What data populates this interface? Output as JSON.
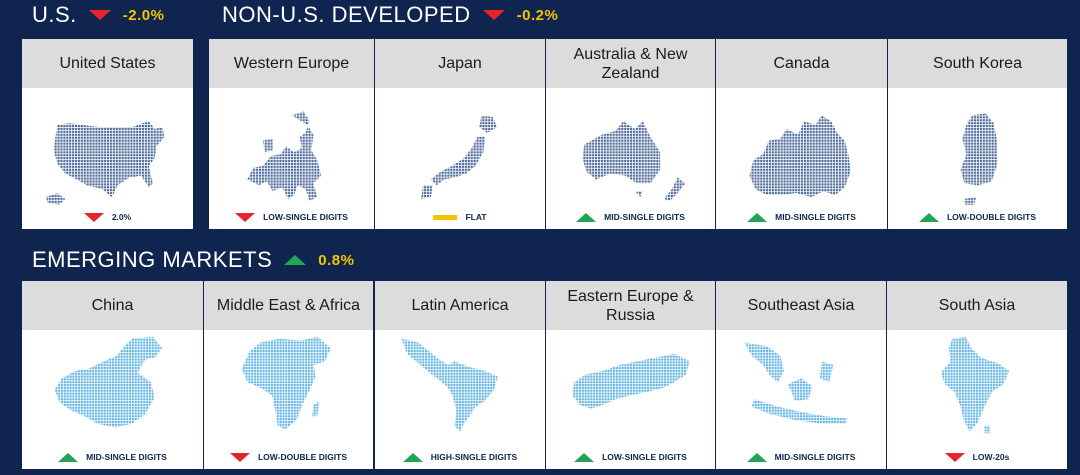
{
  "sections": {
    "us": {
      "title": "U.S.",
      "change": "-2.0%",
      "direction": "down"
    },
    "developed": {
      "title": "NON-U.S. DEVELOPED",
      "change": "-0.2%",
      "direction": "down"
    },
    "emerging": {
      "title": "EMERGING MARKETS",
      "change": "0.8%",
      "direction": "up"
    }
  },
  "colors": {
    "background": "#0f2550",
    "header": "#dcdcdc",
    "down": "#e8242b",
    "up": "#22a454",
    "flat": "#f5c400",
    "developed_map": "#4d6b9a",
    "emerging_map": "#5fb4e3"
  },
  "regions": {
    "us": {
      "name": "United States",
      "outlook": "2.0%",
      "direction": "down"
    },
    "western_europe": {
      "name": "Western Europe",
      "outlook": "LOW-SINGLE DIGITS",
      "direction": "down"
    },
    "japan": {
      "name": "Japan",
      "outlook": "FLAT",
      "direction": "flat"
    },
    "australia_nz": {
      "name": "Australia & New Zealand",
      "outlook": "MID-SINGLE DIGITS",
      "direction": "up"
    },
    "canada": {
      "name": "Canada",
      "outlook": "MID-SINGLE DIGITS",
      "direction": "up"
    },
    "south_korea": {
      "name": "South Korea",
      "outlook": "LOW-DOUBLE DIGITS",
      "direction": "up"
    },
    "china": {
      "name": "China",
      "outlook": "MID-SINGLE DIGITS",
      "direction": "up"
    },
    "mea": {
      "name": "Middle East & Africa",
      "outlook": "LOW-DOUBLE DIGITS",
      "direction": "down"
    },
    "latam": {
      "name": "Latin America",
      "outlook": "HIGH-SINGLE DIGITS",
      "direction": "up"
    },
    "ee_russia": {
      "name": "Eastern Europe & Russia",
      "outlook": "LOW-SINGLE DIGITS",
      "direction": "up"
    },
    "se_asia": {
      "name": "Southeast Asia",
      "outlook": "MID-SINGLE DIGITS",
      "direction": "up"
    },
    "south_asia": {
      "name": "South Asia",
      "outlook": "LOW-20s",
      "direction": "down"
    }
  }
}
